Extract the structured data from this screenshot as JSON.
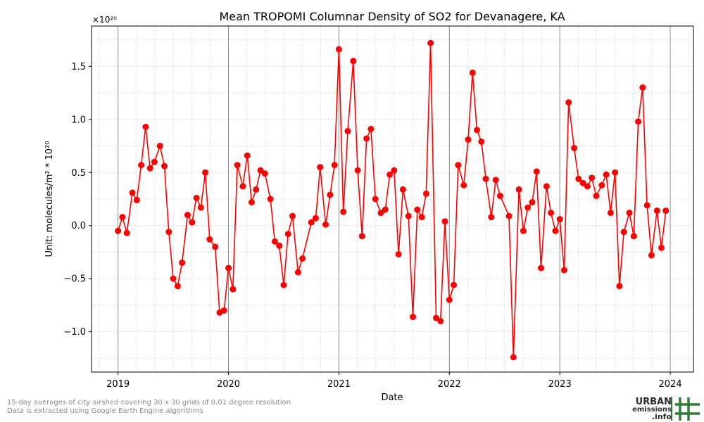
{
  "chart_data": {
    "type": "line",
    "title": "Mean TROPOMI Columnar Density of SO2 for Devanagere, KA",
    "xlabel": "Date",
    "ylabel": "Unit: molecules/m² * 10²⁰",
    "y_scale_label": "×10²⁰",
    "ylim": [
      -1.38,
      1.88
    ],
    "xlim": [
      2018.76,
      2024.21
    ],
    "yticks": [
      -1.0,
      -0.5,
      0.0,
      0.5,
      1.0,
      1.5
    ],
    "ytick_labels": [
      "−1.0",
      "−0.5",
      "0.0",
      "0.5",
      "1.0",
      "1.5"
    ],
    "xticks": [
      2019,
      2020,
      2021,
      2022,
      2023,
      2024
    ],
    "xtick_labels": [
      "2019",
      "2020",
      "2021",
      "2022",
      "2023",
      "2024"
    ],
    "grid": true,
    "line_color": "#ff0000",
    "marker": "circle",
    "series": [
      {
        "x": [
          2019.0,
          2019.04,
          2019.08,
          2019.13,
          2019.17,
          2019.21,
          2019.25,
          2019.29,
          2019.33,
          2019.38,
          2019.42,
          2019.46,
          2019.5,
          2019.54,
          2019.58,
          2019.63,
          2019.67,
          2019.71,
          2019.75,
          2019.79,
          2019.83,
          2019.88,
          2019.92,
          2019.96,
          2020.0,
          2020.04,
          2020.08,
          2020.13,
          2020.17,
          2020.21,
          2020.25,
          2020.29,
          2020.33,
          2020.38,
          2020.42,
          2020.46,
          2020.5,
          2020.54,
          2020.58,
          2020.63,
          2020.67,
          2020.75,
          2020.79,
          2020.83,
          2020.88,
          2020.92,
          2020.96,
          2021.0,
          2021.04,
          2021.08,
          2021.13,
          2021.17,
          2021.21,
          2021.25,
          2021.29,
          2021.33,
          2021.38,
          2021.42,
          2021.46,
          2021.5,
          2021.54,
          2021.58,
          2021.63,
          2021.67,
          2021.71,
          2021.75,
          2021.79,
          2021.83,
          2021.88,
          2021.92,
          2021.96,
          2022.0,
          2022.04,
          2022.08,
          2022.13,
          2022.17,
          2022.21,
          2022.25,
          2022.29,
          2022.33,
          2022.38,
          2022.42,
          2022.46,
          2022.54,
          2022.58,
          2022.63,
          2022.67,
          2022.71,
          2022.75,
          2022.79,
          2022.83,
          2022.88,
          2022.92,
          2022.96,
          2023.0,
          2023.04,
          2023.08,
          2023.13,
          2023.17,
          2023.21,
          2023.25,
          2023.29,
          2023.33,
          2023.38,
          2023.42,
          2023.46,
          2023.5,
          2023.54,
          2023.58,
          2023.63,
          2023.67,
          2023.71,
          2023.75,
          2023.79,
          2023.83,
          2023.88,
          2023.92,
          2023.96
        ],
        "values": [
          -0.05,
          0.08,
          -0.07,
          0.31,
          0.24,
          0.57,
          0.93,
          0.54,
          0.6,
          0.75,
          0.56,
          -0.06,
          -0.5,
          -0.57,
          -0.35,
          0.1,
          0.03,
          0.26,
          0.17,
          0.5,
          -0.13,
          -0.2,
          -0.82,
          -0.8,
          -0.4,
          -0.6,
          0.57,
          0.37,
          0.66,
          0.22,
          0.34,
          0.52,
          0.49,
          0.25,
          -0.15,
          -0.19,
          -0.56,
          -0.08,
          0.09,
          -0.44,
          -0.31,
          0.03,
          0.07,
          0.55,
          0.01,
          0.29,
          0.57,
          1.66,
          0.13,
          0.89,
          1.55,
          0.52,
          -0.1,
          0.82,
          0.91,
          0.25,
          0.12,
          0.15,
          0.48,
          0.52,
          -0.27,
          0.34,
          0.09,
          -0.86,
          0.15,
          0.08,
          0.3,
          1.72,
          -0.87,
          -0.9,
          0.04,
          -0.7,
          -0.56,
          0.57,
          0.38,
          0.81,
          1.44,
          0.9,
          0.79,
          0.44,
          0.08,
          0.43,
          0.28,
          0.09,
          -1.24,
          0.34,
          -0.05,
          0.17,
          0.22,
          0.51,
          -0.4,
          0.37,
          0.12,
          -0.05,
          0.06,
          -0.42,
          1.16,
          0.73,
          0.44,
          0.4,
          0.37,
          0.45,
          0.28,
          0.38,
          0.48,
          0.12,
          0.5,
          -0.57,
          -0.06,
          0.12,
          -0.1,
          0.98,
          1.3,
          0.19,
          -0.28,
          0.14,
          -0.21,
          0.14
        ]
      }
    ]
  },
  "footnotes": {
    "line1": "15-day averages of city airshed covering 30 x 30 grids of 0.01 degree resolution",
    "line2": "Data is extracted using Google Earth Engine algorithms"
  },
  "logo": {
    "line1": "URBAN",
    "line2": "emissions",
    "line3": ".info",
    "color_dark": "#2d2d2d",
    "color_green": "#2e7d32"
  }
}
